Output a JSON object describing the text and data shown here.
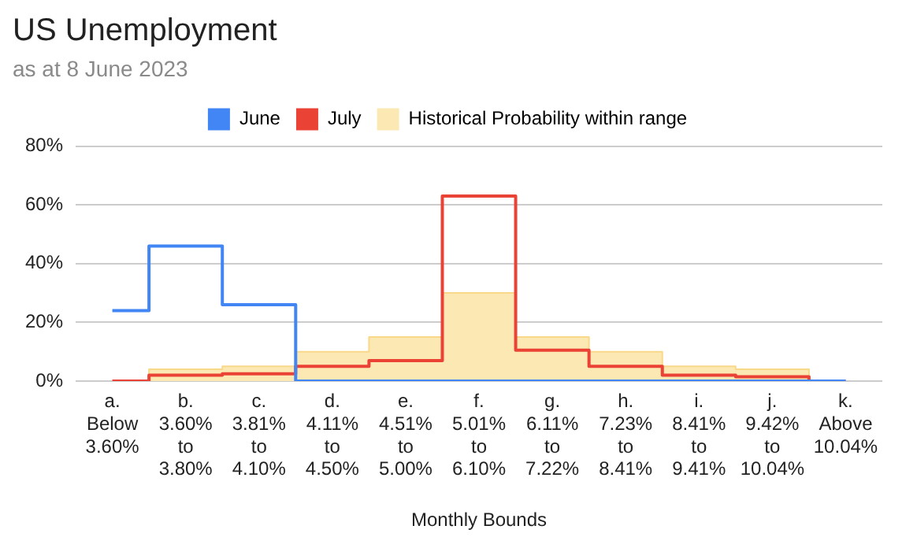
{
  "chart_data": {
    "type": "step",
    "title": "US Unemployment",
    "subtitle": "as at 8 June 2023",
    "xlabel": "Monthly Bounds",
    "categories": [
      "a.\nBelow\n3.60%",
      "b.\n3.60%\nto\n3.80%",
      "c.\n3.81%\nto\n4.10%",
      "d.\n4.11%\nto\n4.50%",
      "e.\n4.51%\nto\n5.00%",
      "f.\n5.01%\nto\n6.10%",
      "g.\n6.11%\nto\n7.22%",
      "h.\n7.23%\nto\n8.41%",
      "i.\n8.41%\nto\n9.41%",
      "j.\n9.42%\nto\n10.04%",
      "k.\nAbove\n10.04%"
    ],
    "series": [
      {
        "name": "June",
        "color": "#4285f4",
        "values": [
          24,
          46,
          26,
          0,
          0,
          0,
          0,
          0,
          0,
          0,
          0
        ]
      },
      {
        "name": "July",
        "color": "#ea4335",
        "values": [
          0,
          2,
          2.5,
          5,
          7,
          63,
          10.5,
          5,
          2,
          1.5,
          0
        ]
      },
      {
        "name": "Historical Probability within range",
        "type": "area",
        "color": "#fce8b2",
        "values": [
          0,
          4,
          5,
          10,
          15,
          30,
          15,
          10,
          5,
          4,
          0
        ]
      }
    ],
    "ylim": [
      0,
      80
    ],
    "yticks": [
      {
        "value": 0,
        "label": "0%"
      },
      {
        "value": 20,
        "label": "20%"
      },
      {
        "value": 40,
        "label": "40%"
      },
      {
        "value": 60,
        "label": "60%"
      },
      {
        "value": 80,
        "label": "80%"
      }
    ],
    "grid": "y",
    "legend": "top",
    "marker": "none"
  }
}
